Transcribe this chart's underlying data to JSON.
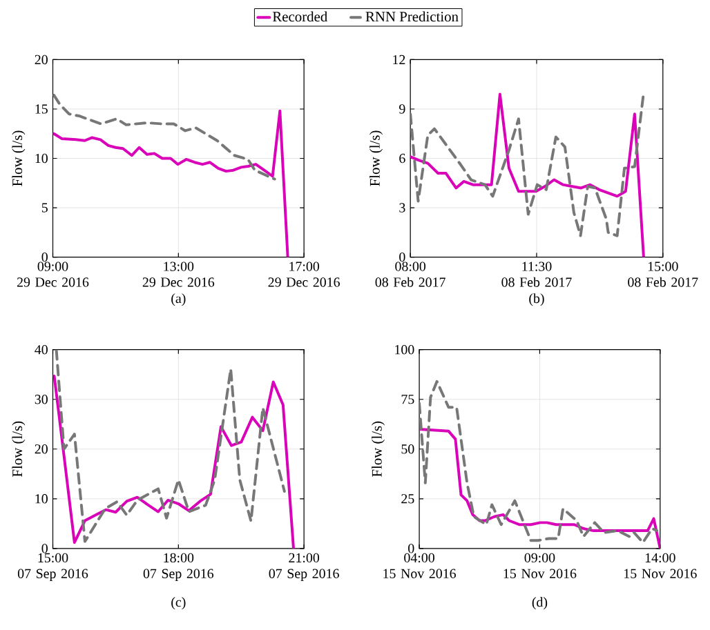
{
  "chart_data": [
    {
      "type": "line",
      "ylabel": "Flow (l/s)",
      "annotations": [
        "(a)"
      ],
      "legend": "top",
      "grid": true,
      "xlim": [
        "2016-12-29T09:00",
        "2016-12-29T17:00"
      ],
      "ylim": [
        0,
        20
      ],
      "xticks": [
        {
          "value": "2016-12-29T09:00",
          "label": "09:00 29 Dec 2016"
        },
        {
          "value": "2016-12-29T13:00",
          "label": "13:00 29 Dec 2016"
        },
        {
          "value": "2016-12-29T17:00",
          "label": "17:00 29 Dec 2016"
        }
      ],
      "yticks": [
        0,
        5,
        10,
        15,
        20
      ],
      "series": [
        {
          "name": "Recorded",
          "color": "#d902b8",
          "line_style": "solid",
          "x": [
            "2016-12-29T09:02",
            "2016-12-29T09:17",
            "2016-12-29T09:44",
            "2016-12-29T10:01",
            "2016-12-29T10:15",
            "2016-12-29T10:31",
            "2016-12-29T10:46",
            "2016-12-29T11:00",
            "2016-12-29T11:14",
            "2016-12-29T11:31",
            "2016-12-29T11:45",
            "2016-12-29T12:00",
            "2016-12-29T12:14",
            "2016-12-29T12:29",
            "2016-12-29T12:45",
            "2016-12-29T12:59",
            "2016-12-29T13:15",
            "2016-12-29T13:31",
            "2016-12-29T13:46",
            "2016-12-29T14:00",
            "2016-12-29T14:16",
            "2016-12-29T14:31",
            "2016-12-29T14:45",
            "2016-12-29T15:00",
            "2016-12-29T15:13",
            "2016-12-29T15:28",
            "2016-12-29T15:44",
            "2016-12-29T16:00",
            "2016-12-29T16:14",
            "2016-12-29T16:29"
          ],
          "values": [
            12.5,
            12.0,
            11.9,
            11.8,
            12.1,
            11.9,
            11.3,
            11.1,
            11.0,
            10.3,
            11.1,
            10.4,
            10.5,
            10.0,
            10.0,
            9.4,
            9.9,
            9.6,
            9.4,
            9.6,
            9.0,
            8.7,
            8.8,
            9.1,
            9.2,
            9.4,
            8.8,
            8.2,
            14.8,
            0
          ]
        },
        {
          "name": "RNN Prediction",
          "color": "#777777",
          "line_style": "dashed",
          "x": [
            "2016-12-29T09:02",
            "2016-12-29T09:13",
            "2016-12-29T09:31",
            "2016-12-29T09:50",
            "2016-12-29T10:32",
            "2016-12-29T11:02",
            "2016-12-29T11:20",
            "2016-12-29T12:01",
            "2016-12-29T12:27",
            "2016-12-29T12:51",
            "2016-12-29T13:13",
            "2016-12-29T13:33",
            "2016-12-29T14:14",
            "2016-12-29T14:47",
            "2016-12-29T15:13",
            "2016-12-29T15:26",
            "2016-12-29T16:04"
          ],
          "values": [
            16.4,
            15.5,
            14.5,
            14.3,
            13.5,
            14.0,
            13.4,
            13.6,
            13.5,
            13.5,
            12.8,
            13.1,
            11.8,
            10.3,
            9.9,
            8.8,
            7.9
          ]
        }
      ]
    },
    {
      "type": "line",
      "ylabel": "Flow (l/s)",
      "annotations": [
        "(b)"
      ],
      "grid": true,
      "xlim": [
        "2017-02-08T08:00",
        "2017-02-08T15:00"
      ],
      "ylim": [
        0,
        12
      ],
      "xticks": [
        {
          "value": "2017-02-08T08:00",
          "label": "08:00 08 Feb 2017"
        },
        {
          "value": "2017-02-08T11:30",
          "label": "11:30 08 Feb 2017"
        },
        {
          "value": "2017-02-08T15:00",
          "label": "15:00 08 Feb 2017"
        }
      ],
      "yticks": [
        0,
        3,
        6,
        9,
        12
      ],
      "series": [
        {
          "color": "#d902b8",
          "line_style": "solid",
          "x": [
            "2017-02-08T08:00",
            "2017-02-08T08:13",
            "2017-02-08T08:29",
            "2017-02-08T08:46",
            "2017-02-08T08:59",
            "2017-02-08T09:16",
            "2017-02-08T09:29",
            "2017-02-08T09:44",
            "2017-02-08T10:00",
            "2017-02-08T10:15",
            "2017-02-08T10:29",
            "2017-02-08T10:44",
            "2017-02-08T11:00",
            "2017-02-08T11:14",
            "2017-02-08T11:29",
            "2017-02-08T11:44",
            "2017-02-08T11:59",
            "2017-02-08T12:14",
            "2017-02-08T12:28",
            "2017-02-08T12:44",
            "2017-02-08T12:59",
            "2017-02-08T13:14",
            "2017-02-08T13:29",
            "2017-02-08T13:44",
            "2017-02-08T13:58",
            "2017-02-08T14:13",
            "2017-02-08T14:28"
          ],
          "values": [
            6.1,
            5.9,
            5.7,
            5.1,
            5.1,
            4.2,
            4.6,
            4.4,
            4.4,
            4.4,
            9.9,
            5.4,
            4.0,
            4.0,
            4.0,
            4.3,
            4.7,
            4.4,
            4.3,
            4.2,
            4.4,
            4.1,
            3.9,
            3.7,
            4.0,
            8.7,
            0
          ]
        },
        {
          "color": "#777777",
          "line_style": "dashed",
          "x": [
            "2017-02-08T08:00",
            "2017-02-08T08:13",
            "2017-02-08T08:29",
            "2017-02-08T08:40",
            "2017-02-08T08:58",
            "2017-02-08T09:24",
            "2017-02-08T09:41",
            "2017-02-08T10:04",
            "2017-02-08T10:17",
            "2017-02-08T10:44",
            "2017-02-08T11:00",
            "2017-02-08T11:16",
            "2017-02-08T11:31",
            "2017-02-08T11:46",
            "2017-02-08T12:02",
            "2017-02-08T12:17",
            "2017-02-08T12:32",
            "2017-02-08T12:43",
            "2017-02-08T12:55",
            "2017-02-08T13:07",
            "2017-02-08T13:26",
            "2017-02-08T13:29",
            "2017-02-08T13:44",
            "2017-02-08T13:56",
            "2017-02-08T14:13",
            "2017-02-08T14:28"
          ],
          "values": [
            8.7,
            3.4,
            7.4,
            7.8,
            6.9,
            5.6,
            4.7,
            4.4,
            3.7,
            6.5,
            8.4,
            2.6,
            4.4,
            4.1,
            7.3,
            6.7,
            2.7,
            1.3,
            4.3,
            4.2,
            2.3,
            1.5,
            1.3,
            5.4,
            5.5,
            10.0
          ]
        }
      ]
    },
    {
      "type": "line",
      "ylabel": "Flow (l/s)",
      "annotations": [
        "(c)"
      ],
      "grid": true,
      "xlim": [
        "2016-09-07T15:00",
        "2016-09-07T21:00"
      ],
      "ylim": [
        0,
        40
      ],
      "xticks": [
        {
          "value": "2016-09-07T15:00",
          "label": "15:00 07 Sep 2016"
        },
        {
          "value": "2016-09-07T18:00",
          "label": "18:00 07 Sep 2016"
        },
        {
          "value": "2016-09-07T21:00",
          "label": "21:00 07 Sep 2016"
        }
      ],
      "yticks": [
        0,
        10,
        20,
        30,
        40
      ],
      "series": [
        {
          "color": "#d902b8",
          "line_style": "solid",
          "x": [
            "2016-09-07T15:02",
            "2016-09-07T15:15",
            "2016-09-07T15:31",
            "2016-09-07T15:46",
            "2016-09-07T16:01",
            "2016-09-07T16:16",
            "2016-09-07T16:30",
            "2016-09-07T16:46",
            "2016-09-07T17:01",
            "2016-09-07T17:16",
            "2016-09-07T17:31",
            "2016-09-07T17:45",
            "2016-09-07T18:00",
            "2016-09-07T18:15",
            "2016-09-07T18:31",
            "2016-09-07T18:46",
            "2016-09-07T19:01",
            "2016-09-07T19:16",
            "2016-09-07T19:30",
            "2016-09-07T19:46",
            "2016-09-07T20:01",
            "2016-09-07T20:16",
            "2016-09-07T20:30",
            "2016-09-07T20:45"
          ],
          "values": [
            34.7,
            19.8,
            1.2,
            5.6,
            6.7,
            7.8,
            7.3,
            9.5,
            10.3,
            8.8,
            7.4,
            9.7,
            9.0,
            7.6,
            9.5,
            10.9,
            24.5,
            20.7,
            21.4,
            26.4,
            23.7,
            33.5,
            28.9,
            0
          ]
        },
        {
          "color": "#777777",
          "line_style": "dashed",
          "x": [
            "2016-09-07T15:05",
            "2016-09-07T15:16",
            "2016-09-07T15:31",
            "2016-09-07T15:46",
            "2016-09-07T16:15",
            "2016-09-07T16:32",
            "2016-09-07T16:46",
            "2016-09-07T17:01",
            "2016-09-07T17:31",
            "2016-09-07T17:43",
            "2016-09-07T18:00",
            "2016-09-07T18:15",
            "2016-09-07T18:39",
            "2016-09-07T18:52",
            "2016-09-07T19:15",
            "2016-09-07T19:28",
            "2016-09-07T19:44",
            "2016-09-07T20:01",
            "2016-09-07T20:32"
          ],
          "values": [
            40,
            20.0,
            23.0,
            1.4,
            8.0,
            9.4,
            6.7,
            9.7,
            12.0,
            6.1,
            13.8,
            7.4,
            8.7,
            13.8,
            36.1,
            13.8,
            5.5,
            28.3,
            11.5
          ]
        }
      ]
    },
    {
      "type": "line",
      "ylabel": "Flow (l/s)",
      "annotations": [
        "(d)"
      ],
      "grid": true,
      "xlim": [
        "2016-11-15T04:00",
        "2016-11-15T14:00"
      ],
      "ylim": [
        0,
        100
      ],
      "xticks": [
        {
          "value": "2016-11-15T04:00",
          "label": "04:00 15 Nov 2016"
        },
        {
          "value": "2016-11-15T09:00",
          "label": "09:00 15 Nov 2016"
        },
        {
          "value": "2016-11-15T14:00",
          "label": "14:00 15 Nov 2016"
        }
      ],
      "yticks": [
        0,
        25,
        50,
        75,
        100
      ],
      "series": [
        {
          "color": "#d902b8",
          "line_style": "solid",
          "x": [
            "2016-11-15T04:00",
            "2016-11-15T05:13",
            "2016-11-15T05:30",
            "2016-11-15T05:44",
            "2016-11-15T05:59",
            "2016-11-15T06:13",
            "2016-11-15T06:30",
            "2016-11-15T06:44",
            "2016-11-15T07:07",
            "2016-11-15T07:29",
            "2016-11-15T07:44",
            "2016-11-15T08:10",
            "2016-11-15T08:38",
            "2016-11-15T09:01",
            "2016-11-15T09:18",
            "2016-11-15T09:41",
            "2016-11-15T10:04",
            "2016-11-15T10:26",
            "2016-11-15T10:49",
            "2016-11-15T11:12",
            "2016-11-15T11:35",
            "2016-11-15T11:58",
            "2016-11-15T12:20",
            "2016-11-15T12:43",
            "2016-11-15T13:06",
            "2016-11-15T13:29",
            "2016-11-15T13:44",
            "2016-11-15T14:00"
          ],
          "values": [
            60,
            59,
            55,
            27,
            24,
            17,
            14,
            14,
            16,
            17,
            14,
            12,
            12,
            13,
            13,
            12,
            12,
            12,
            10,
            9,
            9,
            9,
            9,
            9,
            9,
            9,
            15,
            0
          ]
        },
        {
          "color": "#777777",
          "line_style": "dashed",
          "x": [
            "2016-11-15T04:00",
            "2016-11-15T04:15",
            "2016-11-15T04:28",
            "2016-11-15T04:44",
            "2016-11-15T05:13",
            "2016-11-15T05:33",
            "2016-11-15T05:59",
            "2016-11-15T06:16",
            "2016-11-15T06:47",
            "2016-11-15T07:01",
            "2016-11-15T07:24",
            "2016-11-15T07:58",
            "2016-11-15T08:38",
            "2016-11-15T08:55",
            "2016-11-15T09:23",
            "2016-11-15T09:46",
            "2016-11-15T09:58",
            "2016-11-15T10:32",
            "2016-11-15T10:49",
            "2016-11-15T11:17",
            "2016-11-15T11:40",
            "2016-11-15T12:14",
            "2016-11-15T12:43",
            "2016-11-15T12:55",
            "2016-11-15T13:17",
            "2016-11-15T13:40",
            "2016-11-15T13:52"
          ],
          "values": [
            73,
            33,
            76,
            84,
            71,
            71,
            33,
            16,
            12,
            22,
            12,
            24,
            4,
            4,
            5,
            5,
            20,
            14,
            6,
            13,
            8,
            9,
            6,
            8,
            3,
            10,
            9
          ]
        }
      ]
    }
  ]
}
